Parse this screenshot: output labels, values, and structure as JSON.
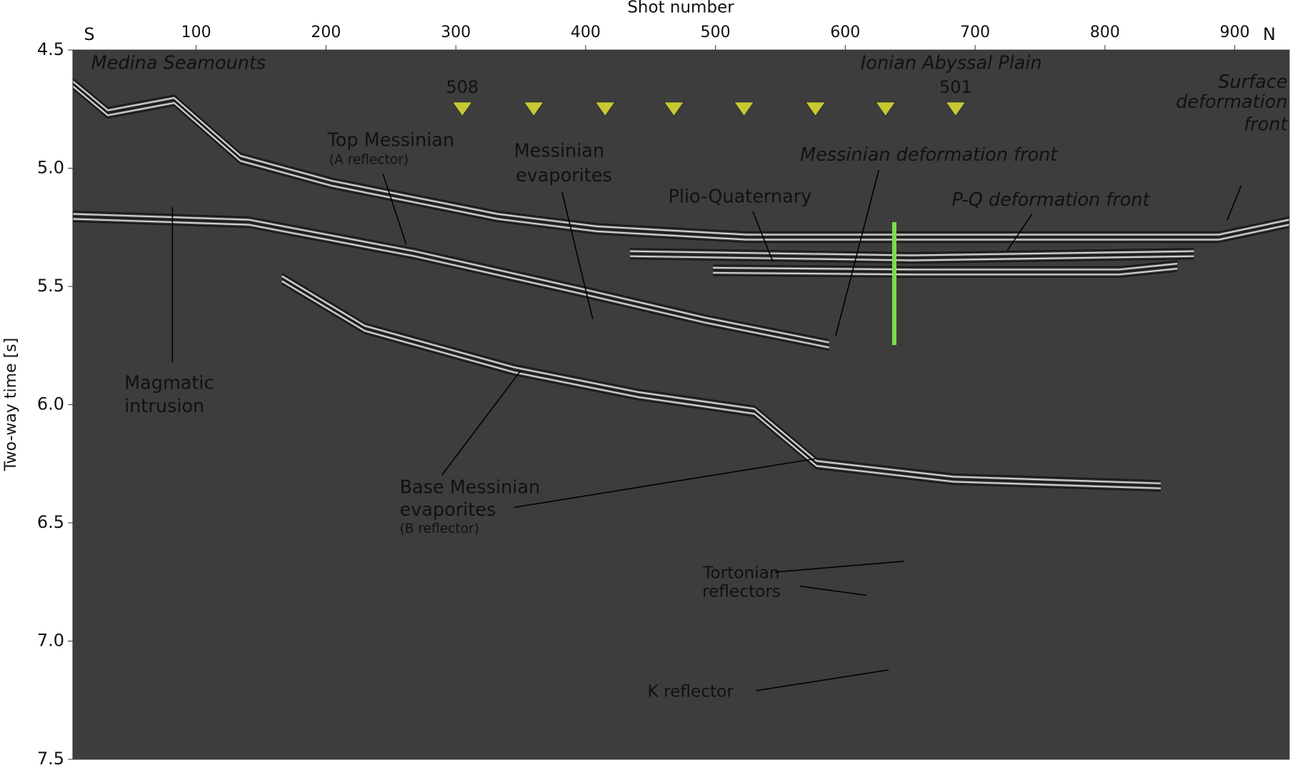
{
  "chart_data": {
    "type": "seismic-section",
    "xlabel": "Shot number",
    "ylabel": "Two-way time [s]",
    "left_end_label": "S",
    "right_end_label": "N",
    "xlim": [
      5,
      942
    ],
    "xticks": [
      100,
      200,
      300,
      400,
      500,
      600,
      700,
      800,
      900
    ],
    "ylim": [
      4.5,
      7.5
    ],
    "yticks": [
      4.5,
      {
        "value": 5,
        "label": "5.0"
      },
      5.5,
      {
        "value": 6,
        "label": "6.0"
      },
      6.5,
      {
        "value": 7,
        "label": "7.0"
      },
      7.5
    ],
    "stations": {
      "color": "#c8c832",
      "x": [
        305,
        360,
        415,
        468,
        522,
        577,
        631,
        685
      ],
      "y": 4.75,
      "labels": [
        "508",
        null,
        null,
        null,
        null,
        null,
        null,
        "501"
      ]
    },
    "annotations": [
      {
        "text": "Medina Seamounts",
        "italic": true
      },
      {
        "text": "Ionian Abyssal Plain",
        "italic": true
      },
      {
        "text": "Surface",
        "italic": true
      },
      {
        "text": "deformation",
        "italic": true
      },
      {
        "text": "front",
        "italic": true
      },
      {
        "text": "Top Messinian",
        "italic": false
      },
      {
        "text": "(A reflector)",
        "italic": false
      },
      {
        "text": "Messinian",
        "italic": false
      },
      {
        "text": "evaporites",
        "italic": false
      },
      {
        "text": "Messinian deformation front",
        "italic": true
      },
      {
        "text": "Plio-Quaternary",
        "italic": false
      },
      {
        "text": "P-Q deformation front",
        "italic": true
      },
      {
        "text": "Magmatic",
        "italic": false
      },
      {
        "text": "intrusion",
        "italic": false
      },
      {
        "text": "Base Messinian",
        "italic": false
      },
      {
        "text": "evaporites",
        "italic": false
      },
      {
        "text": "(B reflector)",
        "italic": false
      },
      {
        "text": "Tortonian",
        "italic": false
      },
      {
        "text": "reflectors",
        "italic": false
      },
      {
        "text": "K  reflector",
        "italic": false
      }
    ]
  }
}
